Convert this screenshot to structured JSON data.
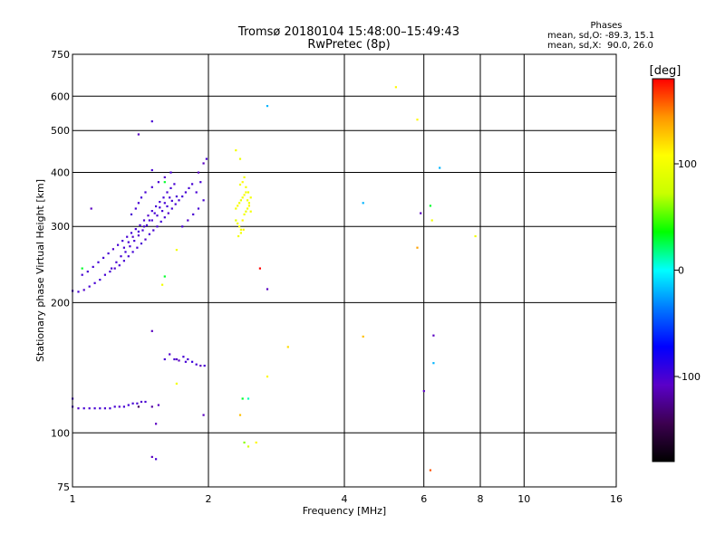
{
  "header": {
    "title_line1": "Tromsø 20180104 15:48:00–15:49:43",
    "title_line2": "RwPretec (8p)"
  },
  "legend": {
    "title": "Phases",
    "line1": "mean, sd,O: -89.3, 15.1",
    "line2": "mean, sd,X:  90.0, 26.0"
  },
  "colorbar": {
    "label": "[deg]",
    "range": [
      -180,
      180
    ],
    "ticks": [
      100,
      0,
      -100
    ],
    "colors": [
      "#000000",
      "#3c0050",
      "#5a00c8",
      "#0000ff",
      "#0078ff",
      "#00ffff",
      "#00ff00",
      "#c8ff00",
      "#ffff00",
      "#ff9600",
      "#ff0000"
    ]
  },
  "chart_data": {
    "type": "scatter",
    "xlabel": "Frequency [MHz]",
    "ylabel": "Stationary phase Virtual Height [km]",
    "x_scale": "log",
    "y_scale": "log",
    "xlim": [
      1,
      16
    ],
    "ylim": [
      75,
      750
    ],
    "x_ticks": [
      1,
      2,
      4,
      6,
      8,
      10,
      16
    ],
    "y_ticks": [
      75,
      100,
      200,
      300,
      400,
      500,
      600,
      750
    ],
    "grid": true,
    "points": [
      [
        1.0,
        115,
        -100
      ],
      [
        1.03,
        114,
        -105
      ],
      [
        1.06,
        114,
        -100
      ],
      [
        1.09,
        114,
        -102
      ],
      [
        1.12,
        114,
        -100
      ],
      [
        1.15,
        114,
        -98
      ],
      [
        1.18,
        114,
        -102
      ],
      [
        1.21,
        114,
        -100
      ],
      [
        1.24,
        115,
        -100
      ],
      [
        1.27,
        115,
        -104
      ],
      [
        1.3,
        115,
        -100
      ],
      [
        1.33,
        116,
        -98
      ],
      [
        1.36,
        117,
        -100
      ],
      [
        1.39,
        117,
        -100
      ],
      [
        1.42,
        118,
        -105
      ],
      [
        1.45,
        118,
        -100
      ],
      [
        1.0,
        120,
        -100
      ],
      [
        1.4,
        115,
        -140
      ],
      [
        1.5,
        115,
        -120
      ],
      [
        1.55,
        116,
        -110
      ],
      [
        1.5,
        88,
        -110
      ],
      [
        1.53,
        87,
        -100
      ],
      [
        1.5,
        172,
        -110
      ],
      [
        1.53,
        105,
        -110
      ],
      [
        1.6,
        148,
        -100
      ],
      [
        1.64,
        152,
        -105
      ],
      [
        1.68,
        148,
        -100
      ],
      [
        1.72,
        147,
        -110
      ],
      [
        1.76,
        150,
        -100
      ],
      [
        1.8,
        148,
        -100
      ],
      [
        1.84,
        146,
        -95
      ],
      [
        1.88,
        144,
        -100
      ],
      [
        1.92,
        143,
        -110
      ],
      [
        1.96,
        143,
        -100
      ],
      [
        1.7,
        148,
        -110
      ],
      [
        1.78,
        146,
        -100
      ],
      [
        1.95,
        110,
        -110
      ],
      [
        1.7,
        130,
        100
      ],
      [
        1.0,
        213,
        -100
      ],
      [
        1.03,
        212,
        -100
      ],
      [
        1.06,
        214,
        -105
      ],
      [
        1.09,
        218,
        -100
      ],
      [
        1.12,
        222,
        -100
      ],
      [
        1.15,
        226,
        -98
      ],
      [
        1.18,
        232,
        -100
      ],
      [
        1.21,
        236,
        -100
      ],
      [
        1.24,
        240,
        -105
      ],
      [
        1.27,
        244,
        -100
      ],
      [
        1.3,
        250,
        -100
      ],
      [
        1.33,
        256,
        -100
      ],
      [
        1.36,
        262,
        -98
      ],
      [
        1.39,
        268,
        -100
      ],
      [
        1.42,
        274,
        -100
      ],
      [
        1.45,
        280,
        -105
      ],
      [
        1.48,
        288,
        -100
      ],
      [
        1.51,
        294,
        -100
      ],
      [
        1.54,
        300,
        -100
      ],
      [
        1.57,
        308,
        -98
      ],
      [
        1.6,
        315,
        -100
      ],
      [
        1.63,
        322,
        -105
      ],
      [
        1.66,
        330,
        -100
      ],
      [
        1.69,
        338,
        -100
      ],
      [
        1.72,
        345,
        -100
      ],
      [
        1.75,
        352,
        -98
      ],
      [
        1.78,
        360,
        -100
      ],
      [
        1.81,
        368,
        -100
      ],
      [
        1.84,
        376,
        -100
      ],
      [
        1.05,
        232,
        -100
      ],
      [
        1.08,
        236,
        -100
      ],
      [
        1.11,
        242,
        -100
      ],
      [
        1.14,
        248,
        -98
      ],
      [
        1.17,
        254,
        -100
      ],
      [
        1.2,
        260,
        -100
      ],
      [
        1.23,
        266,
        -105
      ],
      [
        1.26,
        272,
        -100
      ],
      [
        1.29,
        278,
        -100
      ],
      [
        1.32,
        284,
        -100
      ],
      [
        1.35,
        290,
        -98
      ],
      [
        1.38,
        296,
        -100
      ],
      [
        1.41,
        302,
        -100
      ],
      [
        1.44,
        310,
        -100
      ],
      [
        1.47,
        318,
        -105
      ],
      [
        1.5,
        326,
        -100
      ],
      [
        1.53,
        334,
        -100
      ],
      [
        1.56,
        342,
        -100
      ],
      [
        1.59,
        350,
        -98
      ],
      [
        1.62,
        360,
        -100
      ],
      [
        1.65,
        368,
        -100
      ],
      [
        1.68,
        376,
        -100
      ],
      [
        1.3,
        268,
        -100
      ],
      [
        1.33,
        276,
        -100
      ],
      [
        1.36,
        284,
        -105
      ],
      [
        1.4,
        292,
        -100
      ],
      [
        1.44,
        300,
        -100
      ],
      [
        1.48,
        310,
        -100
      ],
      [
        1.52,
        322,
        -100
      ],
      [
        1.56,
        332,
        -98
      ],
      [
        1.6,
        340,
        -100
      ],
      [
        1.64,
        350,
        -100
      ],
      [
        1.22,
        240,
        -100
      ],
      [
        1.25,
        248,
        -100
      ],
      [
        1.28,
        256,
        -100
      ],
      [
        1.31,
        262,
        -98
      ],
      [
        1.34,
        270,
        -100
      ],
      [
        1.37,
        278,
        -100
      ],
      [
        1.4,
        286,
        -105
      ],
      [
        1.43,
        294,
        -100
      ],
      [
        1.46,
        302,
        -100
      ],
      [
        1.5,
        310,
        -100
      ],
      [
        1.54,
        318,
        -100
      ],
      [
        1.58,
        326,
        -100
      ],
      [
        1.62,
        334,
        -98
      ],
      [
        1.66,
        344,
        -100
      ],
      [
        1.7,
        352,
        -100
      ],
      [
        1.45,
        360,
        -100
      ],
      [
        1.5,
        370,
        -100
      ],
      [
        1.55,
        380,
        -100
      ],
      [
        1.6,
        390,
        -105
      ],
      [
        1.65,
        400,
        -100
      ],
      [
        1.5,
        405,
        -100
      ],
      [
        1.4,
        340,
        -100
      ],
      [
        1.42,
        350,
        -98
      ],
      [
        1.35,
        320,
        -100
      ],
      [
        1.38,
        330,
        -100
      ],
      [
        1.75,
        300,
        -100
      ],
      [
        1.8,
        310,
        -105
      ],
      [
        1.85,
        320,
        -100
      ],
      [
        1.9,
        330,
        -100
      ],
      [
        1.95,
        345,
        -100
      ],
      [
        1.88,
        360,
        -100
      ],
      [
        1.92,
        380,
        -100
      ],
      [
        1.95,
        420,
        -110
      ],
      [
        1.98,
        430,
        -100
      ],
      [
        1.7,
        265,
        100
      ],
      [
        1.6,
        230,
        30
      ],
      [
        1.58,
        220,
        100
      ],
      [
        1.05,
        240,
        30
      ],
      [
        1.1,
        330,
        -110
      ],
      [
        1.4,
        490,
        -110
      ],
      [
        1.5,
        525,
        -100
      ],
      [
        1.9,
        400,
        -110
      ],
      [
        1.6,
        380,
        30
      ],
      [
        2.3,
        330,
        100
      ],
      [
        2.32,
        335,
        110
      ],
      [
        2.34,
        340,
        100
      ],
      [
        2.36,
        345,
        95
      ],
      [
        2.38,
        350,
        100
      ],
      [
        2.4,
        355,
        105
      ],
      [
        2.42,
        360,
        100
      ],
      [
        2.44,
        345,
        100
      ],
      [
        2.46,
        335,
        110
      ],
      [
        2.48,
        325,
        100
      ],
      [
        2.3,
        310,
        90
      ],
      [
        2.32,
        305,
        100
      ],
      [
        2.34,
        300,
        105
      ],
      [
        2.36,
        295,
        100
      ],
      [
        2.38,
        310,
        110
      ],
      [
        2.4,
        320,
        100
      ],
      [
        2.42,
        325,
        95
      ],
      [
        2.44,
        330,
        100
      ],
      [
        2.46,
        340,
        100
      ],
      [
        2.48,
        350,
        100
      ],
      [
        2.35,
        375,
        100
      ],
      [
        2.38,
        380,
        110
      ],
      [
        2.4,
        390,
        100
      ],
      [
        2.42,
        370,
        100
      ],
      [
        2.45,
        360,
        95
      ],
      [
        2.33,
        285,
        100
      ],
      [
        2.36,
        290,
        100
      ],
      [
        2.39,
        295,
        110
      ],
      [
        2.3,
        450,
        100
      ],
      [
        2.35,
        430,
        95
      ],
      [
        2.38,
        120,
        30
      ],
      [
        2.4,
        95,
        60
      ],
      [
        2.45,
        93,
        80
      ],
      [
        2.35,
        110,
        130
      ],
      [
        2.55,
        95,
        110
      ],
      [
        2.45,
        120,
        10
      ],
      [
        2.6,
        240,
        180
      ],
      [
        2.7,
        215,
        -110
      ],
      [
        2.7,
        570,
        -20
      ],
      [
        2.7,
        135,
        110
      ],
      [
        3.0,
        158,
        120
      ],
      [
        4.4,
        340,
        -20
      ],
      [
        4.4,
        167,
        130
      ],
      [
        5.2,
        630,
        110
      ],
      [
        5.8,
        530,
        110
      ],
      [
        5.8,
        268,
        140
      ],
      [
        5.9,
        322,
        -110
      ],
      [
        6.0,
        125,
        -110
      ],
      [
        6.2,
        82,
        160
      ],
      [
        6.2,
        335,
        30
      ],
      [
        6.25,
        310,
        100
      ],
      [
        6.3,
        168,
        -110
      ],
      [
        6.3,
        145,
        -20
      ],
      [
        6.5,
        410,
        -20
      ],
      [
        7.8,
        285,
        100
      ]
    ]
  }
}
